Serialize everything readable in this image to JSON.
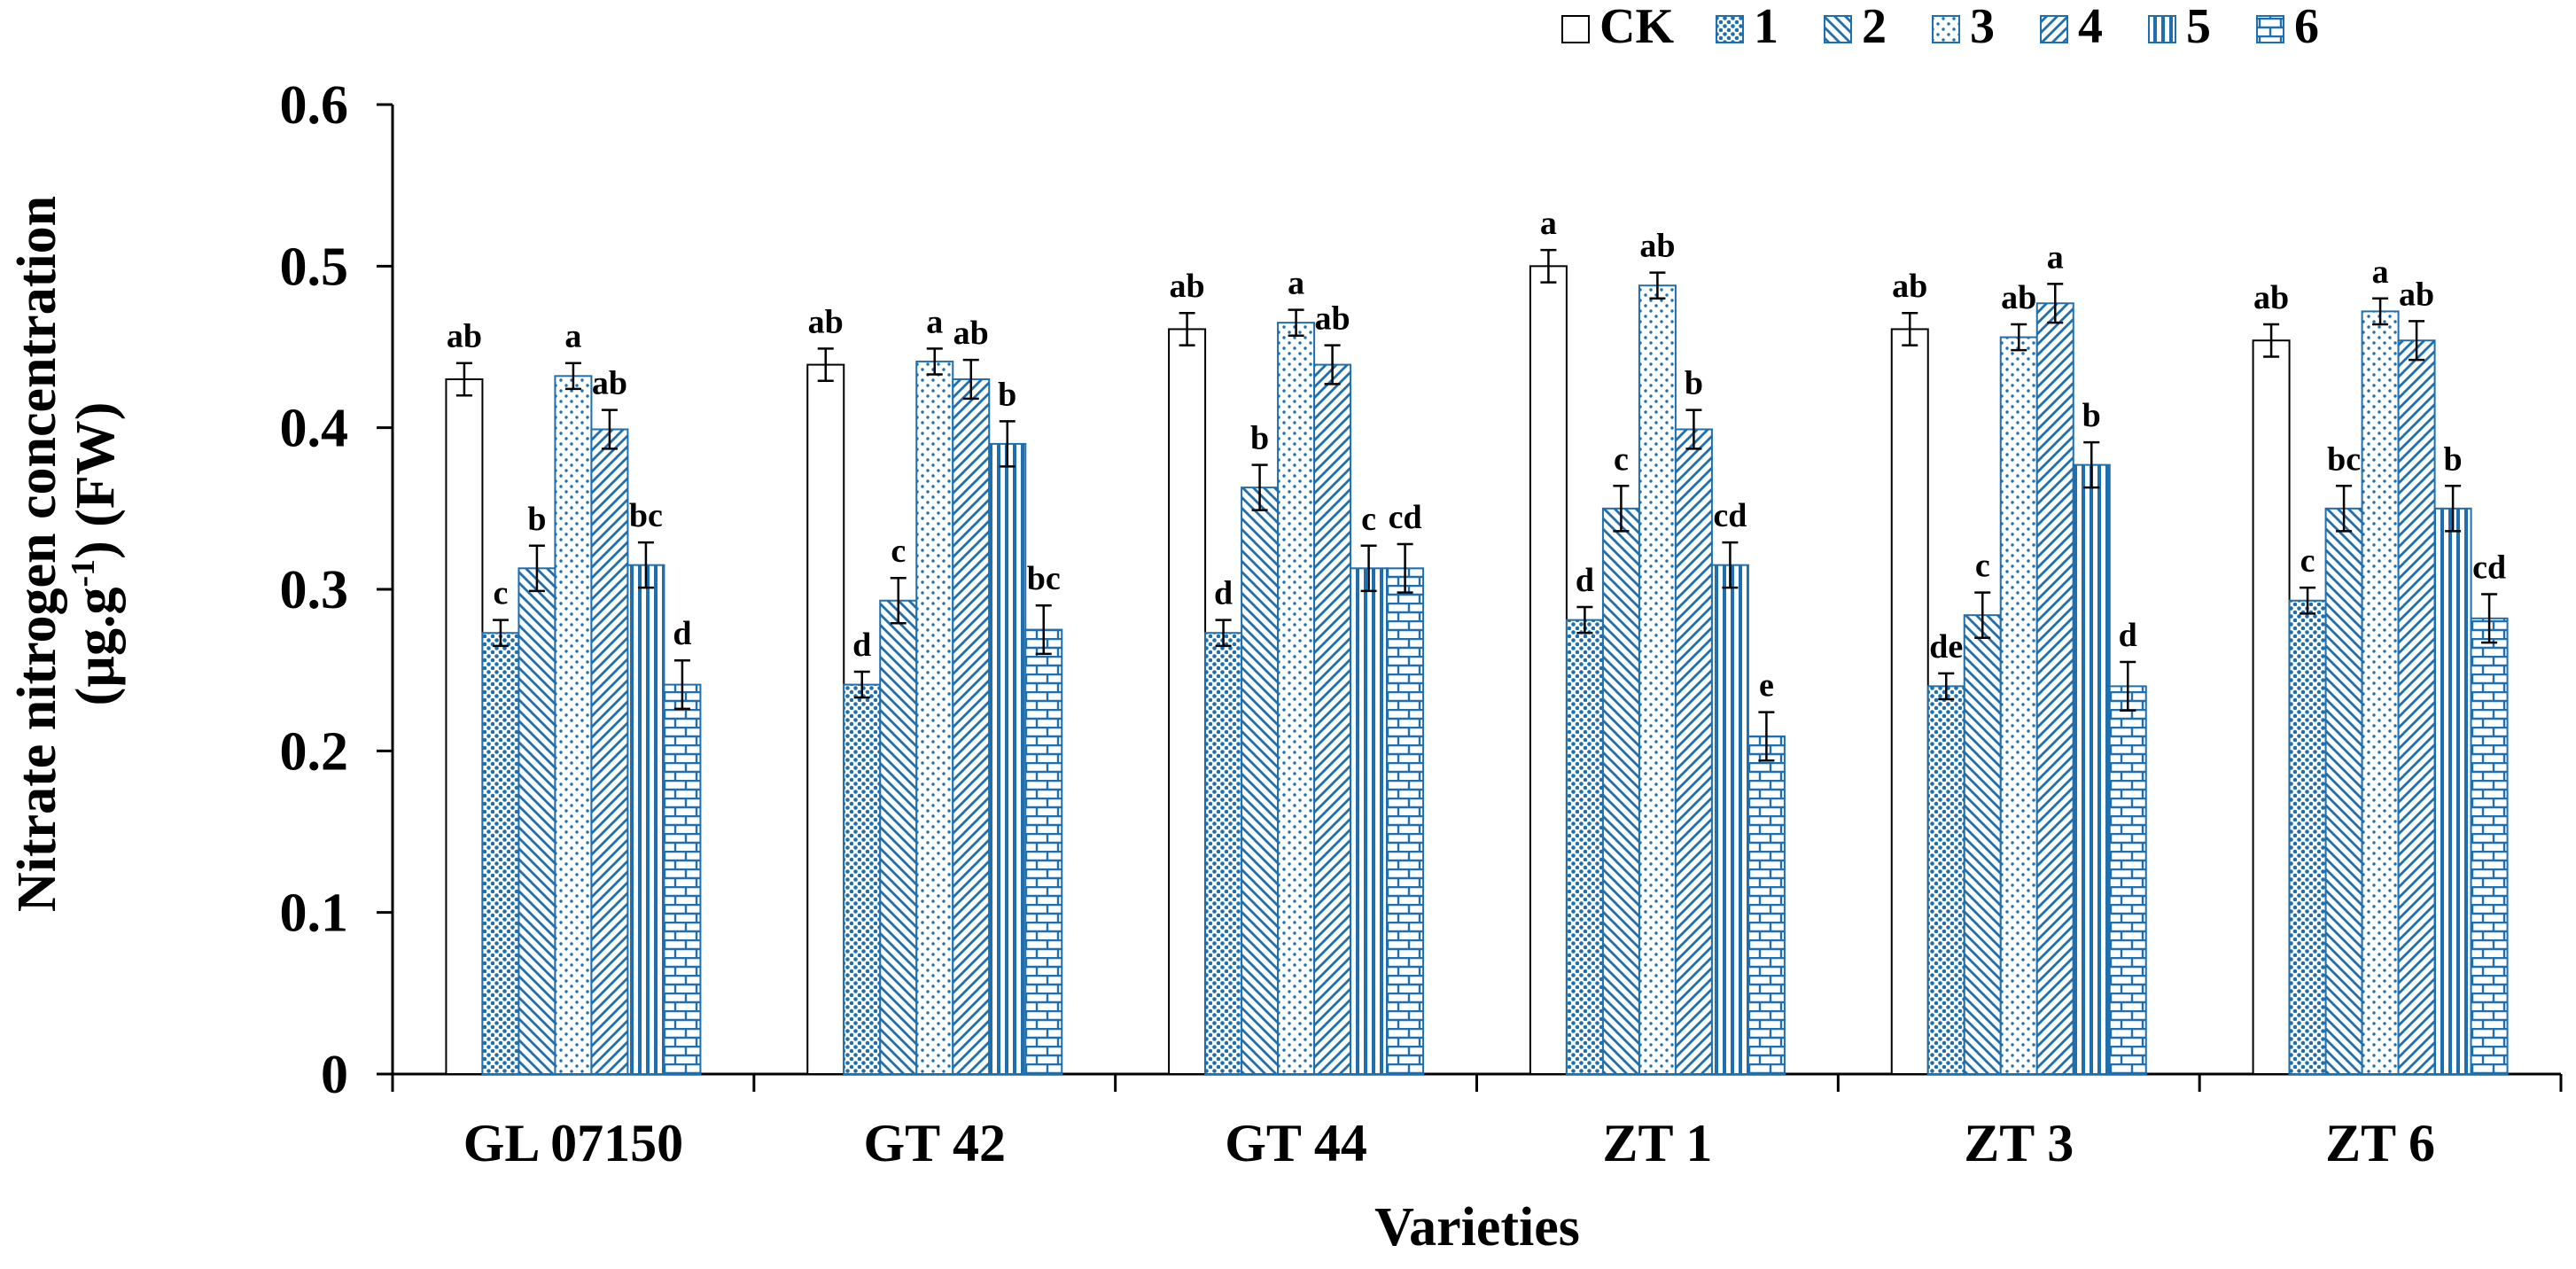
{
  "chart_data": {
    "type": "bar",
    "title": "",
    "xlabel": "Varieties",
    "ylabel": {
      "line1": "Nitrate nitrogen concentration",
      "line2_prefix": "(µg.g",
      "line2_sup": "-1",
      "line2_suffix": ")  (FW)"
    },
    "ylim": [
      0,
      0.6
    ],
    "yticks": [
      "0",
      "0.1",
      "0.2",
      "0.3",
      "0.4",
      "0.5",
      "0.6"
    ],
    "grid": false,
    "legend_position": "top-right",
    "categories": [
      "GL 07150",
      "GT 42",
      "GT 44",
      "ZT 1",
      "ZT 3",
      "ZT 6"
    ],
    "series": [
      {
        "name": "CK",
        "pattern": "none",
        "values": [
          0.43,
          0.439,
          0.461,
          0.5,
          0.461,
          0.454
        ],
        "errors": [
          0.01,
          0.01,
          0.01,
          0.01,
          0.01,
          0.01
        ],
        "labels": [
          "ab",
          "ab",
          "ab",
          "a",
          "ab",
          "ab"
        ]
      },
      {
        "name": "1",
        "pattern": "dense-dots",
        "values": [
          0.273,
          0.241,
          0.273,
          0.281,
          0.24,
          0.293
        ],
        "errors": [
          0.008,
          0.008,
          0.008,
          0.008,
          0.008,
          0.008
        ],
        "labels": [
          "c",
          "d",
          "d",
          "d",
          "de",
          "c"
        ]
      },
      {
        "name": "2",
        "pattern": "diag-down",
        "values": [
          0.313,
          0.293,
          0.363,
          0.35,
          0.284,
          0.35
        ],
        "errors": [
          0.014,
          0.014,
          0.014,
          0.014,
          0.014,
          0.014
        ],
        "labels": [
          "b",
          "c",
          "b",
          "c",
          "c",
          "bc"
        ]
      },
      {
        "name": "3",
        "pattern": "sparse-dots",
        "values": [
          0.432,
          0.441,
          0.465,
          0.488,
          0.456,
          0.472
        ],
        "errors": [
          0.008,
          0.008,
          0.008,
          0.008,
          0.008,
          0.008
        ],
        "labels": [
          "a",
          "a",
          "a",
          "ab",
          "ab",
          "a"
        ]
      },
      {
        "name": "4",
        "pattern": "diag-up",
        "values": [
          0.399,
          0.43,
          0.439,
          0.399,
          0.477,
          0.454
        ],
        "errors": [
          0.012,
          0.012,
          0.012,
          0.012,
          0.012,
          0.012
        ],
        "labels": [
          "ab",
          "ab",
          "ab",
          "b",
          "a",
          "ab"
        ]
      },
      {
        "name": "5",
        "pattern": "vertical",
        "values": [
          0.315,
          0.39,
          0.313,
          0.315,
          0.377,
          0.35
        ],
        "errors": [
          0.014,
          0.014,
          0.014,
          0.014,
          0.014,
          0.014
        ],
        "labels": [
          "bc",
          "b",
          "c",
          "cd",
          "b",
          "b"
        ]
      },
      {
        "name": "6",
        "pattern": "brick",
        "values": [
          0.241,
          0.275,
          0.313,
          0.209,
          0.24,
          0.282
        ],
        "errors": [
          0.015,
          0.015,
          0.015,
          0.015,
          0.015,
          0.015
        ],
        "labels": [
          "d",
          "bc",
          "cd",
          "e",
          "d",
          "cd"
        ]
      }
    ]
  },
  "colors": {
    "bar_stroke": "#1f6fae",
    "ck_stroke": "#000000",
    "axis": "#000000",
    "background": "#ffffff"
  }
}
